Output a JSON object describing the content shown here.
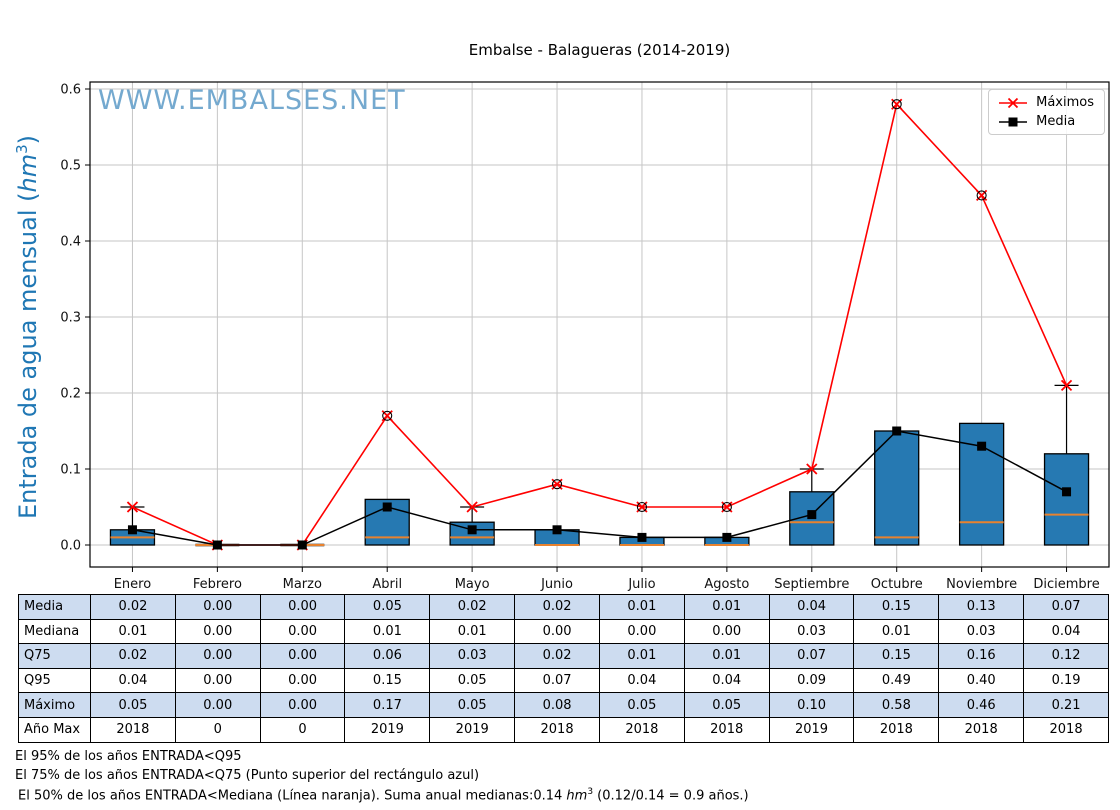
{
  "title": "Embalse - Balagueras (2014-2019)",
  "watermark": "WWW.EMBALSES.NET",
  "y_axis": {
    "label_prefix": "Entrada de agua mensual (",
    "label_unit": "hm",
    "label_sup": "3",
    "label_suffix": ")",
    "ticks": [
      "0.0",
      "0.1",
      "0.2",
      "0.3",
      "0.4",
      "0.5",
      "0.6"
    ]
  },
  "chart_data": {
    "type": "boxplot+line",
    "title": "Embalse - Balagueras (2014-2019)",
    "ylabel": "Entrada de agua mensual (hm3)",
    "categories": [
      "Enero",
      "Febrero",
      "Marzo",
      "Abril",
      "Mayo",
      "Junio",
      "Julio",
      "Agosto",
      "Septiembre",
      "Octubre",
      "Noviembre",
      "Diciembre"
    ],
    "series": [
      {
        "name": "Máximos",
        "type": "line",
        "color": "#ff0000",
        "marker": "x",
        "values": [
          0.05,
          0.0,
          0.0,
          0.17,
          0.05,
          0.08,
          0.05,
          0.05,
          0.1,
          0.58,
          0.46,
          0.21
        ]
      },
      {
        "name": "Media",
        "type": "line",
        "color": "#000000",
        "marker": "square",
        "values": [
          0.02,
          0.0,
          0.0,
          0.05,
          0.02,
          0.02,
          0.01,
          0.01,
          0.04,
          0.15,
          0.13,
          0.07
        ]
      }
    ],
    "boxplot": {
      "box_bottom": 0,
      "q75_top": [
        0.02,
        0.0,
        0.0,
        0.06,
        0.03,
        0.02,
        0.01,
        0.01,
        0.07,
        0.15,
        0.16,
        0.12
      ],
      "mediana": [
        0.01,
        0.0,
        0.0,
        0.01,
        0.01,
        0.0,
        0.0,
        0.0,
        0.03,
        0.01,
        0.03,
        0.04
      ],
      "whisker_top": [
        0.05,
        null,
        null,
        null,
        0.05,
        null,
        null,
        null,
        0.1,
        null,
        null,
        0.21
      ],
      "outliers": [
        null,
        null,
        null,
        0.17,
        null,
        0.08,
        0.05,
        0.05,
        null,
        0.58,
        0.46,
        null
      ]
    },
    "ylim": [
      -0.03,
      0.63
    ],
    "yticks": [
      0,
      0.1,
      0.2,
      0.3,
      0.4,
      0.5,
      0.6
    ],
    "grid": true,
    "legend_position": "upper right"
  },
  "table": {
    "row_labels": [
      "Media",
      "Mediana",
      "Q75",
      "Q95",
      "Máximo",
      "Año Max"
    ],
    "rows": [
      [
        "0.02",
        "0.00",
        "0.00",
        "0.05",
        "0.02",
        "0.02",
        "0.01",
        "0.01",
        "0.04",
        "0.15",
        "0.13",
        "0.07"
      ],
      [
        "0.01",
        "0.00",
        "0.00",
        "0.01",
        "0.01",
        "0.00",
        "0.00",
        "0.00",
        "0.03",
        "0.01",
        "0.03",
        "0.04"
      ],
      [
        "0.02",
        "0.00",
        "0.00",
        "0.06",
        "0.03",
        "0.02",
        "0.01",
        "0.01",
        "0.07",
        "0.15",
        "0.16",
        "0.12"
      ],
      [
        "0.04",
        "0.00",
        "0.00",
        "0.15",
        "0.05",
        "0.07",
        "0.04",
        "0.04",
        "0.09",
        "0.49",
        "0.40",
        "0.19"
      ],
      [
        "0.05",
        "0.00",
        "0.00",
        "0.17",
        "0.05",
        "0.08",
        "0.05",
        "0.05",
        "0.10",
        "0.58",
        "0.46",
        "0.21"
      ],
      [
        "2018",
        "0",
        "0",
        "2019",
        "2019",
        "2018",
        "2018",
        "2018",
        "2019",
        "2018",
        "2018",
        "2018"
      ]
    ]
  },
  "footnotes": {
    "line1": "El 95% de los años ENTRADA<Q95",
    "line2": "El 75% de los años ENTRADA<Q75 (Punto superior del rectángulo azul)",
    "line3_prefix": "El 50% de los años ENTRADA<Mediana (Línea naranja). Suma anual medianas:0.14 ",
    "line3_unit": "hm",
    "line3_sup": "3",
    "line3_suffix": " (0.12/0.14 = 0.9 años.)"
  },
  "colors": {
    "box_fill": "#2679b2",
    "box_edge": "#000000",
    "median": "#e8822e",
    "maximos_line": "#ff0000",
    "media_line": "#000000",
    "grid": "#c6c6c6",
    "spine": "#000000",
    "table_row_alt": "#cddcf0",
    "watermark": "#74a9cf",
    "ylabel": "#1f77b4"
  }
}
